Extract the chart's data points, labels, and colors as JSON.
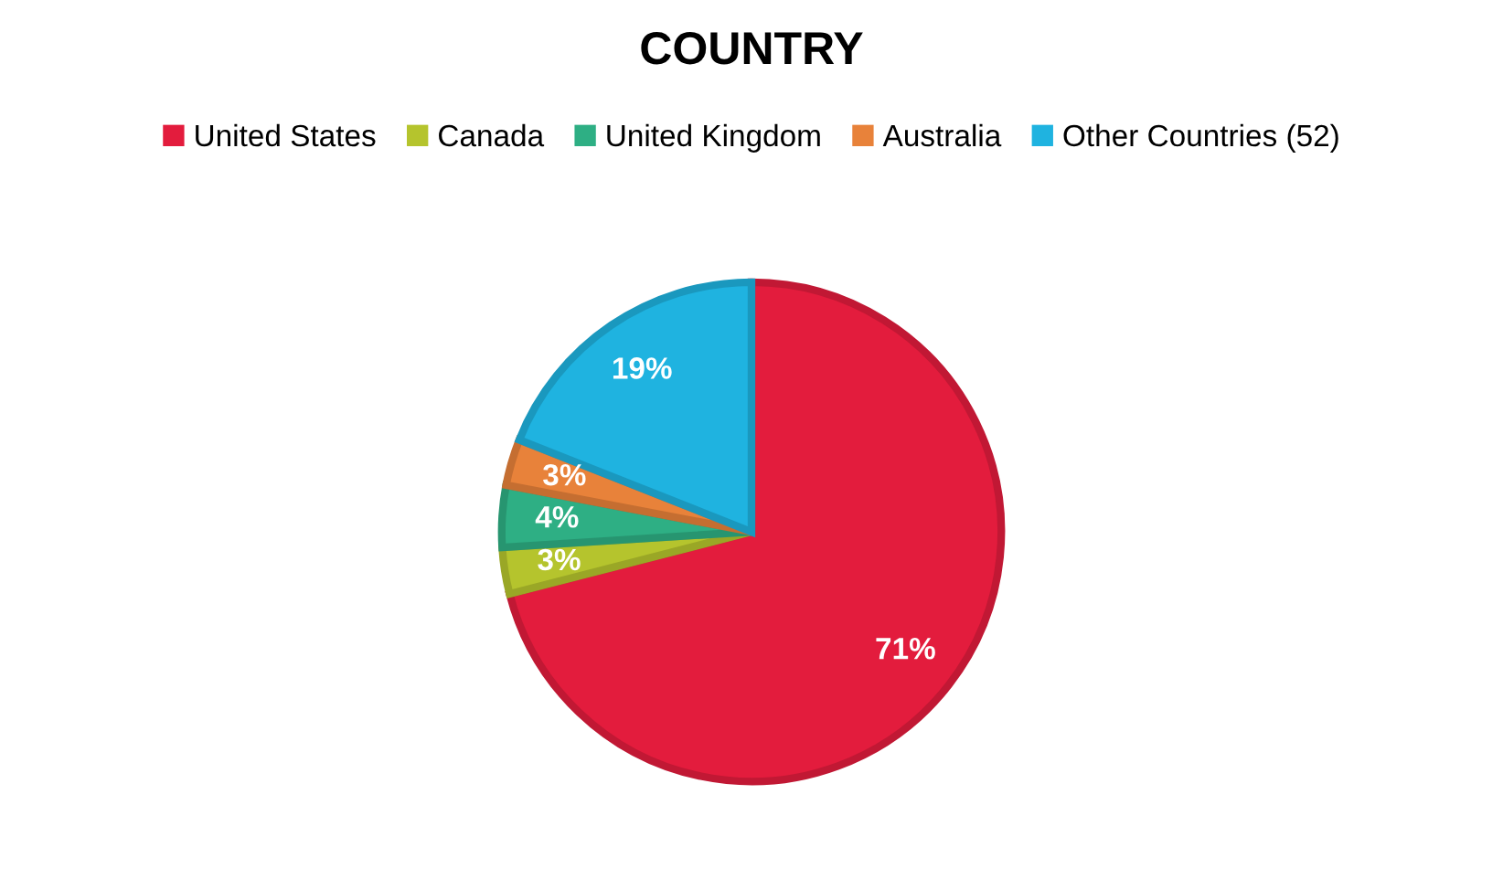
{
  "chart_data": {
    "type": "pie",
    "title": "COUNTRY",
    "categories": [
      "United States",
      "Canada",
      "United Kingdom",
      "Australia",
      "Other Countries (52)"
    ],
    "values": [
      71,
      3,
      4,
      3,
      19
    ],
    "colors": [
      "#e31c3d",
      "#b5c42d",
      "#2eaf84",
      "#e8823a",
      "#1fb3e0"
    ],
    "value_labels": [
      "71%",
      "3%",
      "4%",
      "3%",
      "19%"
    ],
    "legend": "top"
  }
}
